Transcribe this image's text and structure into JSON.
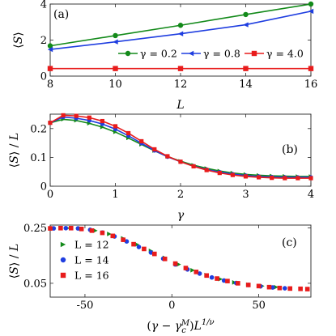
{
  "colors": {
    "green": "#138a1a",
    "blue": "#1f3ee0",
    "red": "#e81b1b"
  },
  "chart_data": [
    {
      "type": "line",
      "panel": "(a)",
      "xlabel": "L",
      "ylabel": "⟨S⟩",
      "xlim": [
        8,
        16
      ],
      "ylim": [
        0,
        4
      ],
      "xticks": [
        8,
        10,
        12,
        14,
        16
      ],
      "yticks": [
        0,
        2,
        4
      ],
      "legend": {
        "placement": "inside-bottom",
        "entries": [
          "γ = 0.2",
          "γ = 0.8",
          "γ = 4.0"
        ]
      },
      "x": [
        8,
        10,
        12,
        14,
        16
      ],
      "series": [
        {
          "name": "γ = 0.2",
          "color": "green",
          "marker": "circle",
          "values": [
            1.68,
            2.25,
            2.82,
            3.42,
            4.0
          ]
        },
        {
          "name": "γ = 0.8",
          "color": "blue",
          "marker": "triangle-left",
          "values": [
            1.48,
            1.9,
            2.35,
            2.85,
            3.6
          ]
        },
        {
          "name": "γ = 4.0",
          "color": "red",
          "marker": "square",
          "values": [
            0.42,
            0.42,
            0.42,
            0.42,
            0.42
          ]
        }
      ]
    },
    {
      "type": "line",
      "panel": "(b)",
      "xlabel": "γ",
      "ylabel": "⟨S⟩ / L",
      "xlim": [
        0,
        4
      ],
      "ylim": [
        0,
        0.25
      ],
      "xticks": [
        0,
        1,
        2,
        3,
        4
      ],
      "yticks": [
        0,
        0.1,
        0.2
      ],
      "series": [
        {
          "color": "green",
          "marker": "triangle-right",
          "x": [
            0,
            0.2,
            0.4,
            0.6,
            0.8,
            1,
            1.2,
            1.4,
            1.6,
            1.8,
            2,
            2.2,
            2.4,
            2.6,
            2.8,
            3,
            3.2,
            3.4,
            3.6,
            3.8,
            4
          ],
          "values": [
            0.22,
            0.232,
            0.228,
            0.218,
            0.205,
            0.188,
            0.167,
            0.145,
            0.123,
            0.103,
            0.087,
            0.073,
            0.062,
            0.053,
            0.046,
            0.041,
            0.038,
            0.036,
            0.035,
            0.034,
            0.034
          ]
        },
        {
          "color": "blue",
          "marker": "circle",
          "x": [
            0,
            0.2,
            0.4,
            0.6,
            0.8,
            1,
            1.2,
            1.4,
            1.6,
            1.8,
            2,
            2.2,
            2.4,
            2.6,
            2.8,
            3,
            3.2,
            3.4,
            3.6,
            3.8,
            4
          ],
          "values": [
            0.22,
            0.24,
            0.236,
            0.228,
            0.216,
            0.198,
            0.175,
            0.149,
            0.124,
            0.102,
            0.085,
            0.07,
            0.058,
            0.049,
            0.042,
            0.037,
            0.034,
            0.032,
            0.031,
            0.031,
            0.031
          ]
        },
        {
          "color": "red",
          "marker": "square",
          "x": [
            0,
            0.2,
            0.4,
            0.6,
            0.8,
            1,
            1.2,
            1.4,
            1.6,
            1.8,
            2,
            2.2,
            2.4,
            2.6,
            2.8,
            3,
            3.2,
            3.4,
            3.6,
            3.8,
            4
          ],
          "values": [
            0.22,
            0.246,
            0.244,
            0.238,
            0.226,
            0.208,
            0.184,
            0.156,
            0.128,
            0.104,
            0.085,
            0.069,
            0.056,
            0.046,
            0.039,
            0.034,
            0.031,
            0.029,
            0.028,
            0.028,
            0.028
          ]
        }
      ]
    },
    {
      "type": "scatter",
      "panel": "(c)",
      "xlabel": "(γ − γ_c^M) L^{1/ν}",
      "ylabel": "⟨S⟩ / L",
      "xlim": [
        -70,
        80
      ],
      "ylim": [
        0,
        0.26
      ],
      "xticks": [
        -50,
        0,
        50
      ],
      "yticks": [
        0.05,
        0.25
      ],
      "legend": {
        "placement": "left",
        "entries": [
          "L = 12",
          "L = 14",
          "L = 16"
        ]
      },
      "series": [
        {
          "name": "L = 12",
          "color": "green",
          "marker": "triangle-right",
          "x": [
            -68,
            -60,
            -52,
            -44,
            -36,
            -28,
            -20,
            -12,
            -4,
            4,
            12,
            20,
            28,
            36,
            44,
            52,
            60
          ],
          "values": [
            0.248,
            0.249,
            0.247,
            0.24,
            0.228,
            0.212,
            0.19,
            0.167,
            0.142,
            0.118,
            0.097,
            0.08,
            0.065,
            0.053,
            0.045,
            0.04,
            0.036
          ]
        },
        {
          "name": "L = 14",
          "color": "blue",
          "marker": "circle",
          "x": [
            -68,
            -61,
            -54,
            -47,
            -40,
            -33,
            -26,
            -19,
            -12,
            -5,
            2,
            9,
            16,
            23,
            30,
            37,
            44,
            51,
            58,
            65
          ],
          "values": [
            0.248,
            0.249,
            0.248,
            0.243,
            0.233,
            0.219,
            0.201,
            0.181,
            0.161,
            0.139,
            0.118,
            0.1,
            0.085,
            0.071,
            0.06,
            0.051,
            0.044,
            0.039,
            0.035,
            0.032
          ]
        },
        {
          "name": "L = 16",
          "color": "red",
          "marker": "square",
          "x": [
            -70,
            -64,
            -58,
            -52,
            -46,
            -40,
            -34,
            -28,
            -22,
            -16,
            -10,
            -4,
            2,
            8,
            14,
            20,
            26,
            32,
            38,
            44,
            50,
            56,
            62,
            68,
            74,
            78
          ],
          "values": [
            0.248,
            0.249,
            0.249,
            0.246,
            0.24,
            0.232,
            0.221,
            0.207,
            0.191,
            0.174,
            0.156,
            0.138,
            0.121,
            0.105,
            0.091,
            0.078,
            0.067,
            0.058,
            0.05,
            0.044,
            0.04,
            0.036,
            0.033,
            0.031,
            0.03,
            0.029
          ]
        }
      ]
    }
  ]
}
